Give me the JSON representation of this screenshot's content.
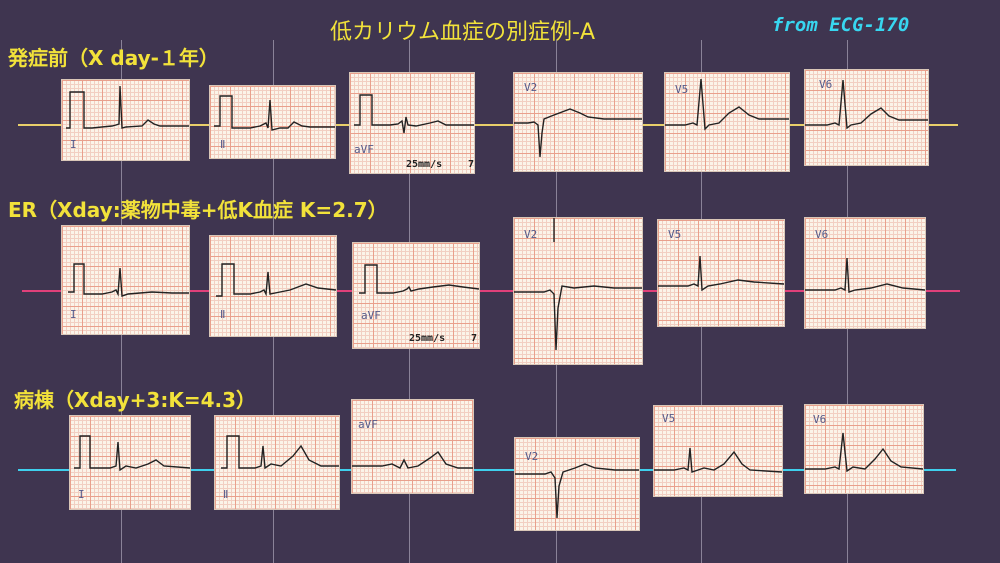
{
  "title": "低カリウム血症の別症例-A",
  "source": "from ECG-170",
  "rows": [
    {
      "label": "発症前（X day-１年）",
      "leads": [
        "I",
        "Ⅱ",
        "aVF",
        "V2",
        "V5",
        "V6"
      ],
      "speed": "25mm/s",
      "speed_suffix": "7"
    },
    {
      "label": "ER（Xday:薬物中毒+低K血症 K=2.7）",
      "leads": [
        "I",
        "Ⅱ",
        "aVF",
        "V2",
        "V5",
        "V6"
      ],
      "speed": "25mm/s",
      "speed_suffix": "7"
    },
    {
      "label": "病棟（Xday+3:K=4.3）",
      "leads": [
        "I",
        "Ⅱ",
        "aVF",
        "V2",
        "V5",
        "V6"
      ]
    }
  ],
  "colors": {
    "background": "#3f3550",
    "title": "#f2e23a",
    "source": "#38d6f0",
    "row1_line": "#e8cf6a",
    "row2_line": "#e0407a",
    "row3_line": "#3fd0ee"
  }
}
